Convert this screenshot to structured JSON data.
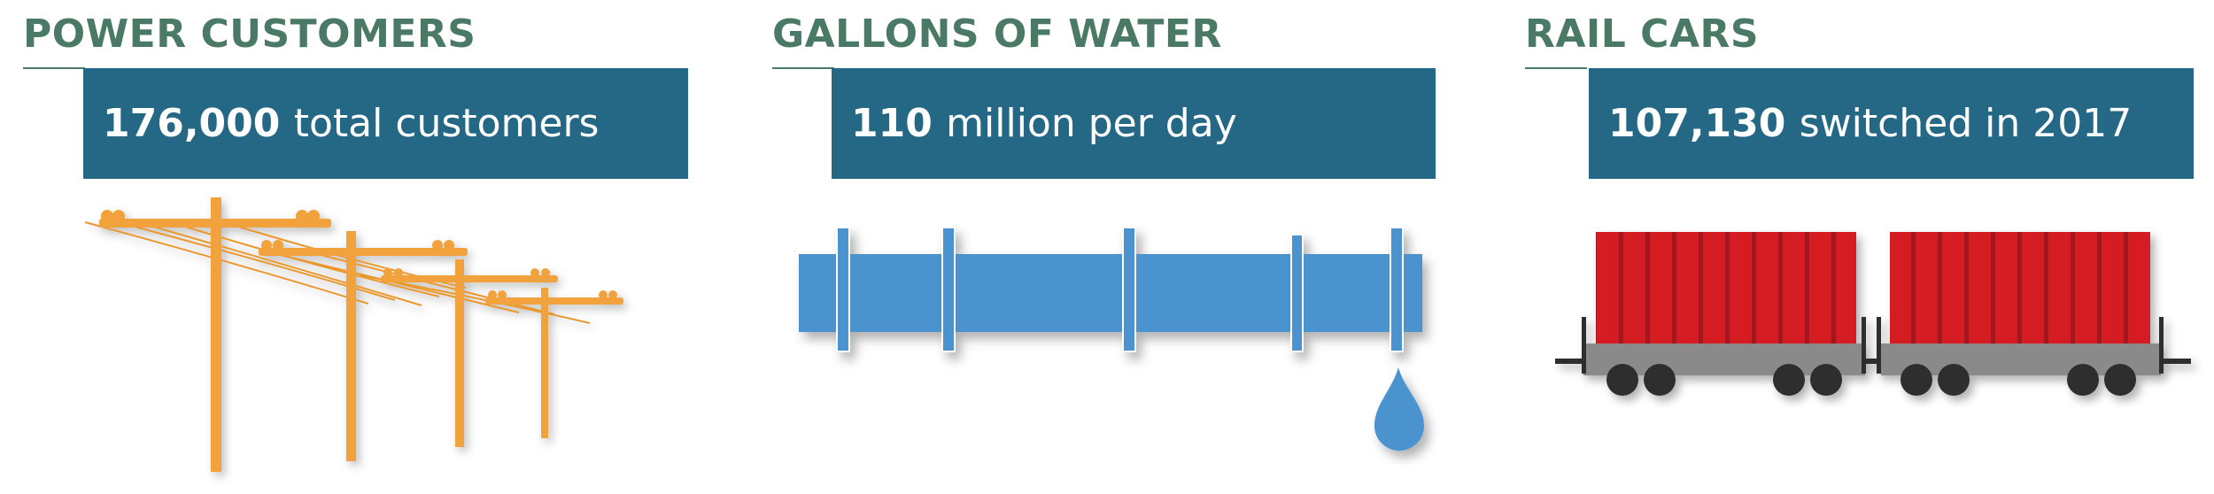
{
  "colors": {
    "heading": "#4a7a66",
    "banner": "#256885",
    "pole": "#f2a23c",
    "pipe": "#4c93cf",
    "railcar": "#d41b24",
    "chassis": "#8a8a8a"
  },
  "panels": [
    {
      "title": "POWER CUSTOMERS",
      "stat_value": "176,000",
      "stat_text": "total customers",
      "icon": "power-lines-icon"
    },
    {
      "title": "GALLONS OF WATER",
      "stat_value": "110",
      "stat_text": "million per day",
      "icon": "water-pipe-icon"
    },
    {
      "title": "RAIL CARS",
      "stat_value": "107,130",
      "stat_text": "switched in 2017",
      "icon": "rail-cars-icon"
    }
  ]
}
